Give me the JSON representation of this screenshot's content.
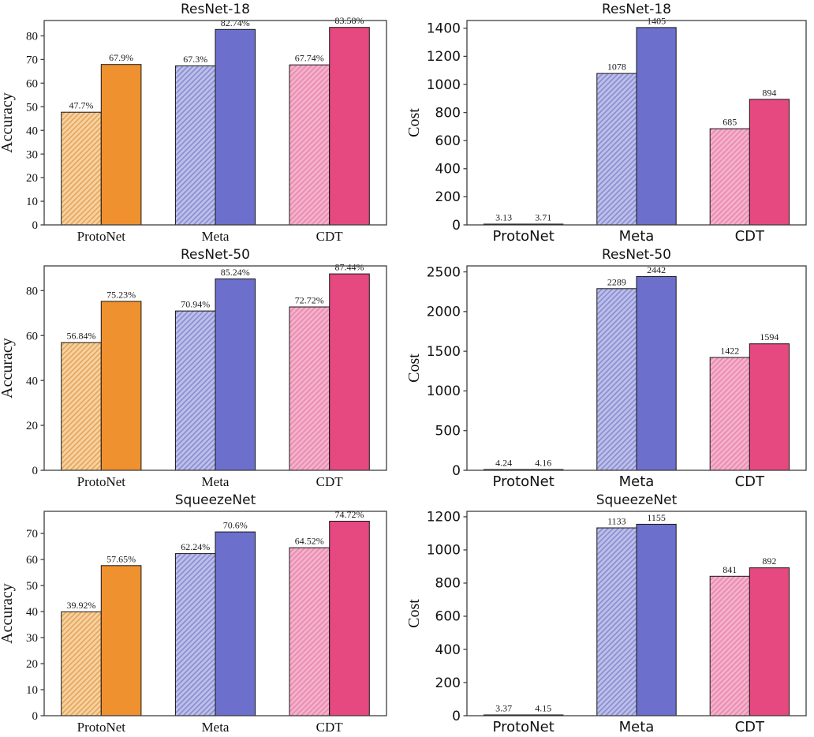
{
  "page": {
    "background": "#ffffff",
    "layout": "2x3-grid-of-bar-charts"
  },
  "colors": {
    "families": {
      "orange": {
        "light": "#F6D2A0",
        "hatch": "#E5A055",
        "solid": "#F0912F"
      },
      "blue": {
        "light": "#BCBFE8",
        "hatch": "#8488D0",
        "solid": "#6C6FCB"
      },
      "pink": {
        "light": "#F5B1CB",
        "hatch": "#E785AC",
        "solid": "#E5497F"
      }
    },
    "bar_edge": "#161616",
    "spine": "#3f3f3f",
    "text": "#111111"
  },
  "chart_data": [
    {
      "id": "resnet18-accuracy",
      "type": "bar",
      "title": "ResNet-18",
      "xlabel": "",
      "ylabel": "Accuracy",
      "categories": [
        "ProtoNet",
        "Meta",
        "CDT"
      ],
      "families": [
        "orange",
        "blue",
        "pink"
      ],
      "series": [
        {
          "name": "hatched",
          "style": "hatched",
          "values": [
            47.7,
            67.3,
            67.74
          ],
          "labels": [
            "47.7%",
            "67.3%",
            "67.74%"
          ]
        },
        {
          "name": "solid",
          "style": "solid",
          "values": [
            67.9,
            82.74,
            83.58
          ],
          "labels": [
            "67.9%",
            "82.74%",
            "83.58%"
          ]
        }
      ],
      "ylim": [
        0,
        86.5
      ],
      "yticks": [
        0,
        10,
        20,
        30,
        40,
        50,
        60,
        70,
        80
      ],
      "tick_font": "serif",
      "grid": false,
      "legend": "none"
    },
    {
      "id": "resnet18-cost",
      "type": "bar",
      "title": "ResNet-18",
      "xlabel": "",
      "ylabel": "Cost",
      "categories": [
        "ProtoNet",
        "Meta",
        "CDT"
      ],
      "families": [
        "orange",
        "blue",
        "pink"
      ],
      "series": [
        {
          "name": "hatched",
          "style": "hatched",
          "values": [
            3.13,
            1078,
            685
          ],
          "labels": [
            "3.13",
            "1078",
            "685"
          ]
        },
        {
          "name": "solid",
          "style": "solid",
          "values": [
            3.71,
            1405,
            894
          ],
          "labels": [
            "3.71",
            "1405",
            "894"
          ]
        }
      ],
      "ylim": [
        0,
        1455
      ],
      "yticks": [
        0,
        200,
        400,
        600,
        800,
        1000,
        1200,
        1400
      ],
      "tick_font": "sans",
      "grid": false,
      "legend": "none"
    },
    {
      "id": "resnet50-accuracy",
      "type": "bar",
      "title": "ResNet-50",
      "xlabel": "",
      "ylabel": "Accuracy",
      "categories": [
        "ProtoNet",
        "Meta",
        "CDT"
      ],
      "families": [
        "orange",
        "blue",
        "pink"
      ],
      "series": [
        {
          "name": "hatched",
          "style": "hatched",
          "values": [
            56.84,
            70.94,
            72.72
          ],
          "labels": [
            "56.84%",
            "70.94%",
            "72.72%"
          ]
        },
        {
          "name": "solid",
          "style": "solid",
          "values": [
            75.23,
            85.24,
            87.44
          ],
          "labels": [
            "75.23%",
            "85.24%",
            "87.44%"
          ]
        }
      ],
      "ylim": [
        0,
        91
      ],
      "yticks": [
        0,
        20,
        40,
        60,
        80
      ],
      "tick_font": "serif",
      "grid": false,
      "legend": "none"
    },
    {
      "id": "resnet50-cost",
      "type": "bar",
      "title": "ResNet-50",
      "xlabel": "",
      "ylabel": "Cost",
      "categories": [
        "ProtoNet",
        "Meta",
        "CDT"
      ],
      "families": [
        "orange",
        "blue",
        "pink"
      ],
      "series": [
        {
          "name": "hatched",
          "style": "hatched",
          "values": [
            4.24,
            2289,
            1422
          ],
          "labels": [
            "4.24",
            "2289",
            "1422"
          ]
        },
        {
          "name": "solid",
          "style": "solid",
          "values": [
            4.16,
            2442,
            1594
          ],
          "labels": [
            "4.16",
            "2442",
            "1594"
          ]
        }
      ],
      "ylim": [
        0,
        2575
      ],
      "yticks": [
        0,
        500,
        1000,
        1500,
        2000,
        2500
      ],
      "tick_font": "sans",
      "grid": false,
      "legend": "none"
    },
    {
      "id": "squeezenet-accuracy",
      "type": "bar",
      "title": "SqueezeNet",
      "xlabel": "",
      "ylabel": "Accuracy",
      "categories": [
        "ProtoNet",
        "Meta",
        "CDT"
      ],
      "families": [
        "orange",
        "blue",
        "pink"
      ],
      "series": [
        {
          "name": "hatched",
          "style": "hatched",
          "values": [
            39.92,
            62.24,
            64.52
          ],
          "labels": [
            "39.92%",
            "62.24%",
            "64.52%"
          ]
        },
        {
          "name": "solid",
          "style": "solid",
          "values": [
            57.65,
            70.6,
            74.72
          ],
          "labels": [
            "57.65%",
            "70.6%",
            "74.72%"
          ]
        }
      ],
      "ylim": [
        0,
        78.5
      ],
      "yticks": [
        0,
        10,
        20,
        30,
        40,
        50,
        60,
        70
      ],
      "tick_font": "serif",
      "grid": false,
      "legend": "none"
    },
    {
      "id": "squeezenet-cost",
      "type": "bar",
      "title": "SqueezeNet",
      "xlabel": "",
      "ylabel": "Cost",
      "categories": [
        "ProtoNet",
        "Meta",
        "CDT"
      ],
      "families": [
        "orange",
        "blue",
        "pink"
      ],
      "series": [
        {
          "name": "hatched",
          "style": "hatched",
          "values": [
            3.37,
            1133,
            841
          ],
          "labels": [
            "3.37",
            "1133",
            "841"
          ]
        },
        {
          "name": "solid",
          "style": "solid",
          "values": [
            4.15,
            1155,
            892
          ],
          "labels": [
            "4.15",
            "1155",
            "892"
          ]
        }
      ],
      "ylim": [
        0,
        1233
      ],
      "yticks": [
        0,
        200,
        400,
        600,
        800,
        1000,
        1200
      ],
      "tick_font": "sans",
      "grid": false,
      "legend": "none"
    }
  ]
}
